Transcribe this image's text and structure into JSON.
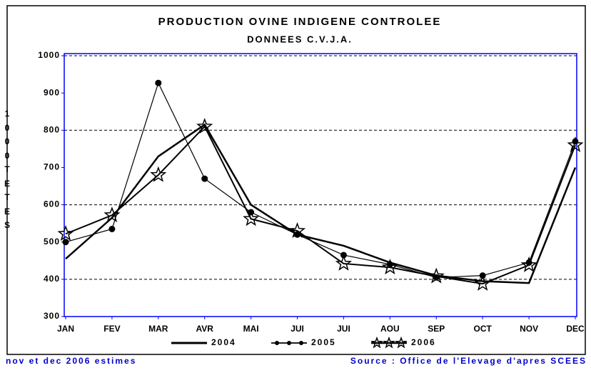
{
  "chart_data": {
    "type": "line",
    "title": "PRODUCTION OVINE INDIGENE CONTROLEE",
    "subtitle": "DONNEES C.V.J.A.",
    "y_label": "1000 TETES",
    "categories": [
      "JAN",
      "FEV",
      "MAR",
      "AVR",
      "MAI",
      "JUI",
      "JUI",
      "AOU",
      "SEP",
      "OCT",
      "NOV",
      "DEC"
    ],
    "series": [
      {
        "name": "2004",
        "color": "#000000",
        "values": [
          455,
          565,
          730,
          815,
          600,
          520,
          490,
          445,
          410,
          395,
          390,
          700
        ]
      },
      {
        "name": "2005",
        "color": "#000000",
        "values": [
          500,
          535,
          927,
          670,
          580,
          520,
          465,
          440,
          405,
          410,
          445,
          770
        ]
      },
      {
        "name": "2006",
        "color": "#000000",
        "values": [
          522,
          572,
          680,
          810,
          562,
          530,
          442,
          432,
          408,
          388,
          438,
          760
        ]
      }
    ],
    "ylim": [
      300,
      1000
    ],
    "yticks": [
      300,
      400,
      500,
      600,
      700,
      800,
      900,
      1000
    ],
    "grid": true,
    "footnote": "nov et dec 2006 estimes",
    "source": "Source : Office de l'Elevage d'apres SCEES"
  }
}
